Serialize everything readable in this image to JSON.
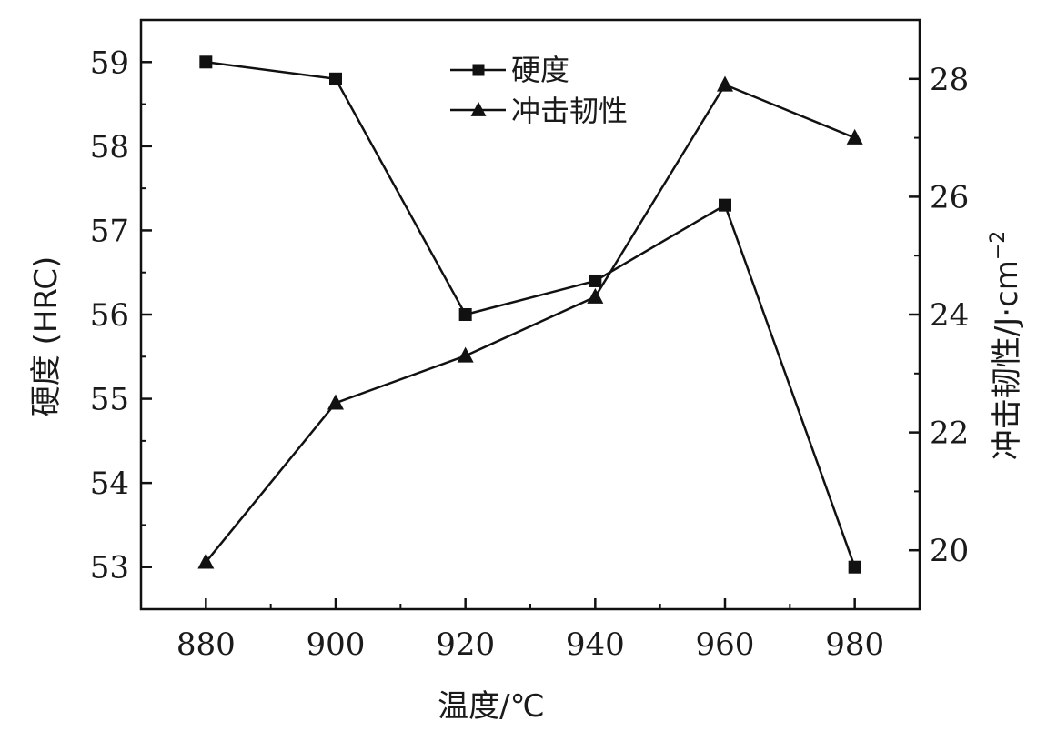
{
  "chart_data": {
    "type": "line",
    "xlabel": "温度/℃",
    "ylabel": "硬度 (HRC)",
    "y2label": "冲击韧性/J·cm",
    "y2label_sup": "−2",
    "x": [
      880,
      900,
      920,
      940,
      960,
      980
    ],
    "xlim": [
      870,
      990
    ],
    "xticks": [
      880,
      900,
      920,
      940,
      960,
      980
    ],
    "ylim": [
      52.5,
      59.5
    ],
    "yticks": [
      53,
      54,
      55,
      56,
      57,
      58,
      59
    ],
    "y2lim": [
      19,
      29
    ],
    "y2ticks": [
      20,
      22,
      24,
      26,
      28
    ],
    "legend_position": "top-center",
    "grid": false,
    "series": [
      {
        "name": "硬度",
        "axis": "left",
        "marker": "square",
        "values": [
          59.0,
          58.8,
          56.0,
          56.4,
          57.3,
          53.0
        ]
      },
      {
        "name": "冲击韧性",
        "axis": "right",
        "marker": "triangle",
        "values": [
          19.8,
          22.5,
          23.3,
          24.3,
          27.9,
          27.0
        ]
      }
    ],
    "colors": {
      "line": "#111111",
      "axis": "#111111"
    }
  }
}
